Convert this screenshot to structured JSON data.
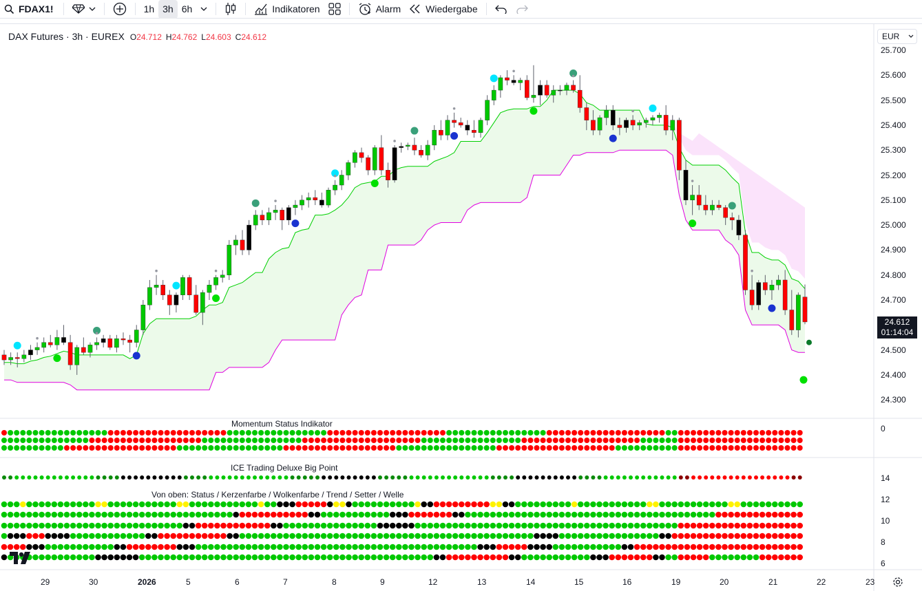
{
  "toolbar": {
    "symbol": "FDAX1!",
    "timeframes": [
      "1h",
      "3h",
      "6h"
    ],
    "active_timeframe": "3h",
    "indicators_label": "Indikatoren",
    "alarm_label": "Alarm",
    "replay_label": "Wiedergabe"
  },
  "legend": {
    "symbol_text": "DAX Futures · 3h · EUREX",
    "o_label": "O",
    "o_value": "24.712",
    "h_label": "H",
    "h_value": "24.762",
    "l_label": "L",
    "l_value": "24.603",
    "c_label": "C",
    "c_value": "24.612"
  },
  "currency": "EUR",
  "last_price": {
    "price": "24.612",
    "countdown": "01:14:04"
  },
  "price_axis": [
    "25.700",
    "25.600",
    "25.500",
    "25.400",
    "25.300",
    "25.200",
    "25.100",
    "25.000",
    "24.900",
    "24.800",
    "24.700",
    "24.600",
    "24.500",
    "24.400",
    "24.300"
  ],
  "time_axis": [
    "29",
    "30",
    "2026",
    "5",
    "6",
    "7",
    "8",
    "9",
    "12",
    "13",
    "14",
    "15",
    "16",
    "19",
    "20",
    "21",
    "22",
    "23"
  ],
  "panes": {
    "momentum_title": "Momentum Status Indikator",
    "momentum_axis": "0",
    "ice_title": "ICE Trading Deluxe Big Point",
    "ice_axis": [
      "14",
      "12",
      "10",
      "8",
      "6"
    ],
    "ice_subtitle": "Von oben: Status / Kerzenfarbe / Wolkenfarbe / Trend / Setter / Welle"
  },
  "colors": {
    "bull": "#00c800",
    "bear": "#ff0000",
    "neutral": "#000000",
    "cloud_line_upper": "#00d000",
    "cloud_line_lower": "#e000e0",
    "cloud_bull_fill": "#ecfaea",
    "cloud_bear_fill": "#fbe3fb"
  },
  "chart_data": {
    "type": "candlestick",
    "symbol": "DAX Futures",
    "timeframe": "3h",
    "ylim": [
      24200,
      25750
    ],
    "candles": [
      [
        24480,
        24500,
        24440,
        24460
      ],
      [
        24460,
        24490,
        24440,
        24470
      ],
      [
        24470,
        24490,
        24430,
        24465
      ],
      [
        24465,
        24500,
        24450,
        24480
      ],
      [
        24480,
        24520,
        24460,
        24500
      ],
      [
        24500,
        24530,
        24480,
        24510
      ],
      [
        24510,
        24550,
        24490,
        24530
      ],
      [
        24530,
        24560,
        24510,
        24520
      ],
      [
        24520,
        24580,
        24500,
        24550
      ],
      [
        24550,
        24600,
        24520,
        24530
      ],
      [
        24530,
        24560,
        24420,
        24440
      ],
      [
        24440,
        24520,
        24400,
        24510
      ],
      [
        24510,
        24550,
        24480,
        24490
      ],
      [
        24490,
        24530,
        24470,
        24520
      ],
      [
        24520,
        24550,
        24500,
        24530
      ],
      [
        24530,
        24560,
        24510,
        24545
      ],
      [
        24545,
        24560,
        24500,
        24510
      ],
      [
        24510,
        24560,
        24490,
        24545
      ],
      [
        24545,
        24570,
        24520,
        24540
      ],
      [
        24540,
        24560,
        24490,
        24530
      ],
      [
        24530,
        24600,
        24510,
        24580
      ],
      [
        24580,
        24700,
        24560,
        24680
      ],
      [
        24680,
        24780,
        24660,
        24750
      ],
      [
        24750,
        24800,
        24720,
        24760
      ],
      [
        24760,
        24780,
        24700,
        24720
      ],
      [
        24720,
        24740,
        24640,
        24680
      ],
      [
        24680,
        24730,
        24650,
        24720
      ],
      [
        24720,
        24800,
        24700,
        24790
      ],
      [
        24790,
        24800,
        24700,
        24720
      ],
      [
        24720,
        24760,
        24640,
        24650
      ],
      [
        24650,
        24740,
        24600,
        24730
      ],
      [
        24730,
        24780,
        24700,
        24760
      ],
      [
        24760,
        24800,
        24740,
        24790
      ],
      [
        24790,
        24820,
        24770,
        24800
      ],
      [
        24800,
        24940,
        24780,
        24920
      ],
      [
        24920,
        24960,
        24880,
        24940
      ],
      [
        24940,
        24980,
        24880,
        24900
      ],
      [
        24900,
        25020,
        24880,
        25000
      ],
      [
        25000,
        25060,
        24980,
        25040
      ],
      [
        25040,
        25060,
        25000,
        25020
      ],
      [
        25020,
        25070,
        25000,
        25050
      ],
      [
        25050,
        25080,
        25020,
        25060
      ],
      [
        25060,
        25070,
        24980,
        25020
      ],
      [
        25020,
        25080,
        25000,
        25070
      ],
      [
        25070,
        25100,
        25040,
        25080
      ],
      [
        25080,
        25120,
        25060,
        25100
      ],
      [
        25100,
        25130,
        25070,
        25110
      ],
      [
        25110,
        25140,
        25080,
        25100
      ],
      [
        25100,
        25130,
        25070,
        25080
      ],
      [
        25080,
        25150,
        25070,
        25140
      ],
      [
        25140,
        25180,
        25120,
        25160
      ],
      [
        25160,
        25220,
        25140,
        25200
      ],
      [
        25200,
        25260,
        25180,
        25250
      ],
      [
        25250,
        25300,
        25230,
        25290
      ],
      [
        25290,
        25310,
        25250,
        25270
      ],
      [
        25270,
        25280,
        25200,
        25220
      ],
      [
        25220,
        25320,
        25200,
        25310
      ],
      [
        25310,
        25360,
        25200,
        25220
      ],
      [
        25220,
        25250,
        25150,
        25180
      ],
      [
        25180,
        25320,
        25170,
        25310
      ],
      [
        25310,
        25330,
        25290,
        25315
      ],
      [
        25315,
        25330,
        25300,
        25320
      ],
      [
        25320,
        25350,
        25280,
        25300
      ],
      [
        25300,
        25320,
        25270,
        25280
      ],
      [
        25280,
        25340,
        25260,
        25320
      ],
      [
        25320,
        25400,
        25300,
        25380
      ],
      [
        25380,
        25420,
        25340,
        25360
      ],
      [
        25360,
        25440,
        25340,
        25420
      ],
      [
        25420,
        25450,
        25390,
        25410
      ],
      [
        25410,
        25430,
        25390,
        25400
      ],
      [
        25400,
        25420,
        25360,
        25380
      ],
      [
        25380,
        25420,
        25350,
        25370
      ],
      [
        25370,
        25430,
        25350,
        25420
      ],
      [
        25420,
        25520,
        25400,
        25500
      ],
      [
        25500,
        25560,
        25480,
        25540
      ],
      [
        25540,
        25600,
        25510,
        25590
      ],
      [
        25590,
        25620,
        25560,
        25580
      ],
      [
        25580,
        25600,
        25560,
        25570
      ],
      [
        25570,
        25590,
        25540,
        25580
      ],
      [
        25580,
        25600,
        25500,
        25510
      ],
      [
        25510,
        25640,
        25490,
        25520
      ],
      [
        25520,
        25580,
        25480,
        25560
      ],
      [
        25560,
        25580,
        25510,
        25520
      ],
      [
        25520,
        25560,
        25490,
        25540
      ],
      [
        25540,
        25560,
        25520,
        25540
      ],
      [
        25540,
        25570,
        25520,
        25560
      ],
      [
        25560,
        25580,
        25530,
        25540
      ],
      [
        25540,
        25600,
        25450,
        25470
      ],
      [
        25470,
        25490,
        25380,
        25420
      ],
      [
        25420,
        25460,
        25360,
        25380
      ],
      [
        25380,
        25440,
        25360,
        25430
      ],
      [
        25430,
        25480,
        25400,
        25460
      ],
      [
        25460,
        25480,
        25380,
        25400
      ],
      [
        25400,
        25430,
        25360,
        25390
      ],
      [
        25390,
        25430,
        25370,
        25420
      ],
      [
        25420,
        25440,
        25380,
        25400
      ],
      [
        25400,
        25420,
        25380,
        25410
      ],
      [
        25410,
        25430,
        25390,
        25420
      ],
      [
        25420,
        25440,
        25400,
        25430
      ],
      [
        25430,
        25450,
        25410,
        25440
      ],
      [
        25440,
        25480,
        25360,
        25380
      ],
      [
        25380,
        25440,
        25340,
        25420
      ],
      [
        25420,
        25430,
        25180,
        25220
      ],
      [
        25220,
        25260,
        25080,
        25100
      ],
      [
        25100,
        25160,
        25040,
        25120
      ],
      [
        25120,
        25160,
        25060,
        25080
      ],
      [
        25080,
        25120,
        25040,
        25060
      ],
      [
        25060,
        25100,
        25040,
        25080
      ],
      [
        25080,
        25100,
        25060,
        25070
      ],
      [
        25070,
        25080,
        25000,
        25030
      ],
      [
        25030,
        25050,
        24980,
        25020
      ],
      [
        25020,
        25040,
        24940,
        24960
      ],
      [
        24960,
        24980,
        24720,
        24740
      ],
      [
        24740,
        24800,
        24660,
        24680
      ],
      [
        24680,
        24780,
        24660,
        24770
      ],
      [
        24770,
        24800,
        24720,
        24740
      ],
      [
        24740,
        24780,
        24700,
        24760
      ],
      [
        24760,
        24800,
        24740,
        24780
      ],
      [
        24780,
        24820,
        24640,
        24660
      ],
      [
        24660,
        24740,
        24560,
        24580
      ],
      [
        24580,
        24730,
        24550,
        24720
      ],
      [
        24712,
        24762,
        24603,
        24612
      ]
    ]
  }
}
